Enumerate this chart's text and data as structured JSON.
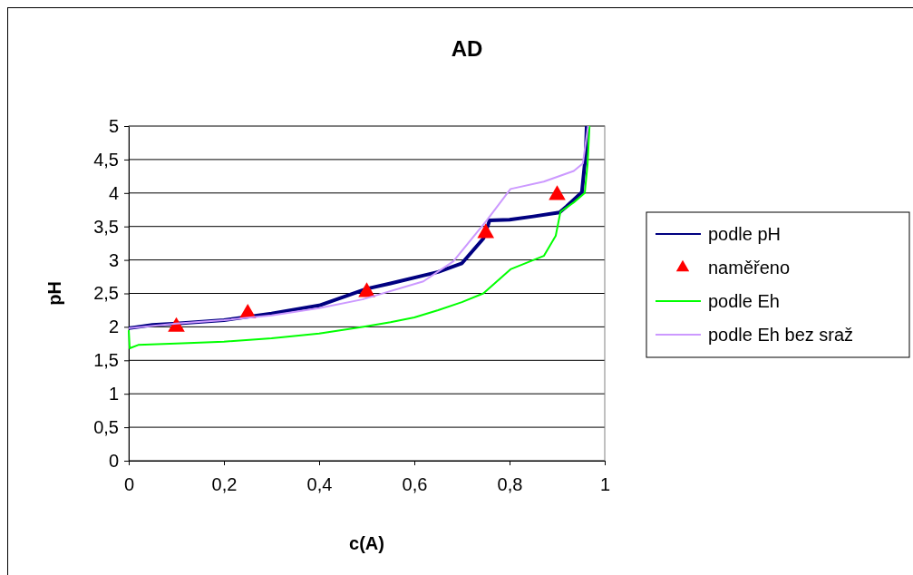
{
  "chart_data": {
    "type": "line",
    "title": "AD",
    "xlabel": "c(A)",
    "ylabel": "pH",
    "xlim": [
      0,
      1
    ],
    "xticks": [
      0,
      {
        "value": 0.2,
        "label": "0,2"
      },
      {
        "value": 0.4,
        "label": "0,4"
      },
      {
        "value": 0.6,
        "label": "0,6"
      },
      {
        "value": 0.8,
        "label": "0,8"
      },
      1
    ],
    "ylim": [
      0,
      5
    ],
    "yticks": [
      0,
      {
        "value": 0.5,
        "label": "0,5"
      },
      1,
      {
        "value": 1.5,
        "label": "1,5"
      },
      2,
      {
        "value": 2.5,
        "label": "2,5"
      },
      3,
      {
        "value": 3.5,
        "label": "3,5"
      },
      4,
      {
        "value": 4.5,
        "label": "4,5"
      },
      5
    ],
    "grid": "y",
    "legend": "right",
    "line_style": "solid",
    "series": [
      {
        "name": "podle pH",
        "color": "#000080",
        "marker": "none",
        "x": [
          0,
          0.05,
          0.1,
          0.2,
          0.3,
          0.4,
          0.5,
          0.55,
          0.62,
          0.65,
          0.7,
          0.745,
          0.758,
          0.8,
          0.85,
          0.905,
          0.92,
          0.952,
          0.96,
          0.962
        ],
        "values": [
          1.98,
          2.03,
          2.05,
          2.1,
          2.2,
          2.32,
          2.57,
          2.65,
          2.77,
          2.82,
          2.95,
          3.32,
          3.59,
          3.6,
          3.65,
          3.71,
          3.8,
          4.01,
          4.58,
          5
        ]
      },
      {
        "name": "naměřeno",
        "type": "scatter",
        "color": "#ff0000",
        "marker": "triangle",
        "x": [
          0.1,
          0.25,
          0.5,
          0.75,
          0.9
        ],
        "values": [
          2.0,
          2.2,
          2.52,
          3.4,
          3.97
        ]
      },
      {
        "name": "podle Eh",
        "color": "#00ff00",
        "marker": "none",
        "x": [
          0,
          0.002,
          0.02,
          0.1,
          0.2,
          0.3,
          0.4,
          0.491,
          0.55,
          0.6,
          0.65,
          0.7,
          0.745,
          0.802,
          0.872,
          0.897,
          0.907,
          0.935,
          0.958,
          0.964,
          0.968
        ],
        "values": [
          1.95,
          1.68,
          1.73,
          1.75,
          1.78,
          1.83,
          1.9,
          2.0,
          2.07,
          2.14,
          2.25,
          2.37,
          2.5,
          2.86,
          3.06,
          3.36,
          3.72,
          3.86,
          4.0,
          4.44,
          5
        ]
      },
      {
        "name": "podle Eh bez sraž",
        "color": "#cc99ff",
        "marker": "none",
        "x": [
          0,
          0.1,
          0.2,
          0.3,
          0.4,
          0.491,
          0.619,
          0.682,
          0.752,
          0.802,
          0.872,
          0.935,
          0.954,
          0.965
        ],
        "values": [
          1.98,
          2.05,
          2.1,
          2.17,
          2.28,
          2.41,
          2.68,
          2.98,
          3.59,
          4.06,
          4.17,
          4.33,
          4.44,
          5
        ]
      }
    ]
  }
}
